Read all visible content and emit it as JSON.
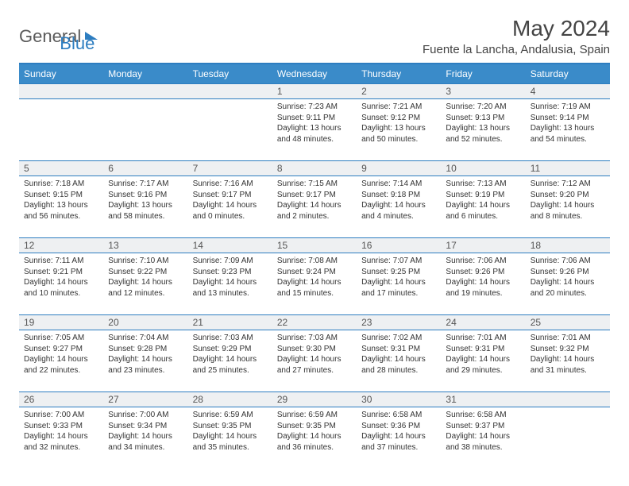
{
  "logo": {
    "text1": "General",
    "text2": "Blue"
  },
  "title": "May 2024",
  "location": "Fuente la Lancha, Andalusia, Spain",
  "colors": {
    "header_bg": "#3a8bc9",
    "border": "#2d7dc0",
    "dayrow_bg": "#eef0f2",
    "text": "#333333"
  },
  "weekdays": [
    "Sunday",
    "Monday",
    "Tuesday",
    "Wednesday",
    "Thursday",
    "Friday",
    "Saturday"
  ],
  "weeks": [
    {
      "nums": [
        "",
        "",
        "",
        "1",
        "2",
        "3",
        "4"
      ],
      "cells": [
        null,
        null,
        null,
        {
          "sr": "7:23 AM",
          "ss": "9:11 PM",
          "dl": "13 hours and 48 minutes."
        },
        {
          "sr": "7:21 AM",
          "ss": "9:12 PM",
          "dl": "13 hours and 50 minutes."
        },
        {
          "sr": "7:20 AM",
          "ss": "9:13 PM",
          "dl": "13 hours and 52 minutes."
        },
        {
          "sr": "7:19 AM",
          "ss": "9:14 PM",
          "dl": "13 hours and 54 minutes."
        }
      ]
    },
    {
      "nums": [
        "5",
        "6",
        "7",
        "8",
        "9",
        "10",
        "11"
      ],
      "cells": [
        {
          "sr": "7:18 AM",
          "ss": "9:15 PM",
          "dl": "13 hours and 56 minutes."
        },
        {
          "sr": "7:17 AM",
          "ss": "9:16 PM",
          "dl": "13 hours and 58 minutes."
        },
        {
          "sr": "7:16 AM",
          "ss": "9:17 PM",
          "dl": "14 hours and 0 minutes."
        },
        {
          "sr": "7:15 AM",
          "ss": "9:17 PM",
          "dl": "14 hours and 2 minutes."
        },
        {
          "sr": "7:14 AM",
          "ss": "9:18 PM",
          "dl": "14 hours and 4 minutes."
        },
        {
          "sr": "7:13 AM",
          "ss": "9:19 PM",
          "dl": "14 hours and 6 minutes."
        },
        {
          "sr": "7:12 AM",
          "ss": "9:20 PM",
          "dl": "14 hours and 8 minutes."
        }
      ]
    },
    {
      "nums": [
        "12",
        "13",
        "14",
        "15",
        "16",
        "17",
        "18"
      ],
      "cells": [
        {
          "sr": "7:11 AM",
          "ss": "9:21 PM",
          "dl": "14 hours and 10 minutes."
        },
        {
          "sr": "7:10 AM",
          "ss": "9:22 PM",
          "dl": "14 hours and 12 minutes."
        },
        {
          "sr": "7:09 AM",
          "ss": "9:23 PM",
          "dl": "14 hours and 13 minutes."
        },
        {
          "sr": "7:08 AM",
          "ss": "9:24 PM",
          "dl": "14 hours and 15 minutes."
        },
        {
          "sr": "7:07 AM",
          "ss": "9:25 PM",
          "dl": "14 hours and 17 minutes."
        },
        {
          "sr": "7:06 AM",
          "ss": "9:26 PM",
          "dl": "14 hours and 19 minutes."
        },
        {
          "sr": "7:06 AM",
          "ss": "9:26 PM",
          "dl": "14 hours and 20 minutes."
        }
      ]
    },
    {
      "nums": [
        "19",
        "20",
        "21",
        "22",
        "23",
        "24",
        "25"
      ],
      "cells": [
        {
          "sr": "7:05 AM",
          "ss": "9:27 PM",
          "dl": "14 hours and 22 minutes."
        },
        {
          "sr": "7:04 AM",
          "ss": "9:28 PM",
          "dl": "14 hours and 23 minutes."
        },
        {
          "sr": "7:03 AM",
          "ss": "9:29 PM",
          "dl": "14 hours and 25 minutes."
        },
        {
          "sr": "7:03 AM",
          "ss": "9:30 PM",
          "dl": "14 hours and 27 minutes."
        },
        {
          "sr": "7:02 AM",
          "ss": "9:31 PM",
          "dl": "14 hours and 28 minutes."
        },
        {
          "sr": "7:01 AM",
          "ss": "9:31 PM",
          "dl": "14 hours and 29 minutes."
        },
        {
          "sr": "7:01 AM",
          "ss": "9:32 PM",
          "dl": "14 hours and 31 minutes."
        }
      ]
    },
    {
      "nums": [
        "26",
        "27",
        "28",
        "29",
        "30",
        "31",
        ""
      ],
      "cells": [
        {
          "sr": "7:00 AM",
          "ss": "9:33 PM",
          "dl": "14 hours and 32 minutes."
        },
        {
          "sr": "7:00 AM",
          "ss": "9:34 PM",
          "dl": "14 hours and 34 minutes."
        },
        {
          "sr": "6:59 AM",
          "ss": "9:35 PM",
          "dl": "14 hours and 35 minutes."
        },
        {
          "sr": "6:59 AM",
          "ss": "9:35 PM",
          "dl": "14 hours and 36 minutes."
        },
        {
          "sr": "6:58 AM",
          "ss": "9:36 PM",
          "dl": "14 hours and 37 minutes."
        },
        {
          "sr": "6:58 AM",
          "ss": "9:37 PM",
          "dl": "14 hours and 38 minutes."
        },
        null
      ]
    }
  ],
  "labels": {
    "sunrise": "Sunrise: ",
    "sunset": "Sunset: ",
    "daylight": "Daylight: "
  }
}
